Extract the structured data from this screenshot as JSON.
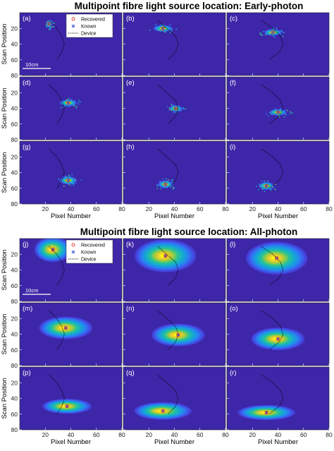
{
  "chart_data": {
    "type": "heatmap",
    "titles": {
      "early": "Multipoint fibre light source location: Early-photon",
      "all": "Multipoint fibre light source location: All-photon"
    },
    "xlabel": "Pixel Number",
    "ylabel": "Scan Position",
    "xlim": [
      0,
      80
    ],
    "ylim": [
      80,
      0
    ],
    "xticks": [
      20,
      40,
      60,
      80
    ],
    "yticks": [
      20,
      40,
      60,
      80
    ],
    "legend": {
      "position": "top-right of panels (a) and (j)",
      "entries": [
        {
          "label": "Recovered",
          "marker": "circle",
          "color": "#e03030"
        },
        {
          "label": "Known",
          "marker": "x",
          "color": "#2040d0"
        },
        {
          "label": "Device",
          "marker": "dotted-line",
          "color": "#000000"
        }
      ]
    },
    "scale_bar": "10cm",
    "colormap": "parula",
    "background_color": "#3d26a8",
    "device_curves": [
      [
        [
          23,
          10
        ],
        [
          29,
          20
        ],
        [
          33,
          30
        ],
        [
          35,
          40
        ],
        [
          33,
          50
        ],
        [
          29,
          60
        ]
      ],
      [
        [
          27,
          10
        ],
        [
          34,
          20
        ],
        [
          41,
          30
        ],
        [
          43,
          40
        ],
        [
          41,
          50
        ],
        [
          35,
          60
        ]
      ],
      [
        [
          27,
          10
        ],
        [
          36,
          20
        ],
        [
          42,
          30
        ],
        [
          44,
          40
        ],
        [
          41,
          50
        ],
        [
          33,
          60
        ]
      ]
    ],
    "panels": [
      {
        "label": "(a)",
        "row": 0,
        "col": 0,
        "mode": "early",
        "source": [
          23,
          14
        ],
        "spread": [
          1.4,
          3.0
        ],
        "curve": 0
      },
      {
        "label": "(b)",
        "row": 0,
        "col": 1,
        "mode": "early",
        "source": [
          31,
          20
        ],
        "spread": [
          4.5,
          2.5
        ],
        "curve": 1
      },
      {
        "label": "(c)",
        "row": 0,
        "col": 2,
        "mode": "early",
        "source": [
          36,
          25
        ],
        "spread": [
          4.0,
          2.5
        ],
        "curve": 2
      },
      {
        "label": "(d)",
        "row": 1,
        "col": 0,
        "mode": "early",
        "source": [
          38,
          33
        ],
        "spread": [
          4.0,
          2.5
        ],
        "curve": 0
      },
      {
        "label": "(e)",
        "row": 1,
        "col": 1,
        "mode": "early",
        "source": [
          41,
          40
        ],
        "spread": [
          3.0,
          2.5
        ],
        "curve": 1
      },
      {
        "label": "(f)",
        "row": 1,
        "col": 2,
        "mode": "early",
        "source": [
          40,
          45
        ],
        "spread": [
          4.0,
          2.5
        ],
        "curve": 2
      },
      {
        "label": "(g)",
        "row": 2,
        "col": 0,
        "mode": "early",
        "source": [
          38,
          50
        ],
        "spread": [
          4.0,
          3.0
        ],
        "curve": 0
      },
      {
        "label": "(h)",
        "row": 2,
        "col": 1,
        "mode": "early",
        "source": [
          33,
          55
        ],
        "spread": [
          3.5,
          3.0
        ],
        "curve": 1
      },
      {
        "label": "(i)",
        "row": 2,
        "col": 2,
        "mode": "early",
        "source": [
          31,
          57
        ],
        "spread": [
          3.5,
          3.0
        ],
        "curve": 2
      },
      {
        "label": "(j)",
        "row": 0,
        "col": 0,
        "mode": "all",
        "source": [
          26,
          14
        ],
        "spread": [
          9.0,
          10.0
        ],
        "curve": 0
      },
      {
        "label": "(k)",
        "row": 0,
        "col": 1,
        "mode": "all",
        "source": [
          33,
          22
        ],
        "spread": [
          15.0,
          13.0
        ],
        "curve": 1
      },
      {
        "label": "(l)",
        "row": 0,
        "col": 2,
        "mode": "all",
        "source": [
          39,
          25
        ],
        "spread": [
          15.0,
          13.0
        ],
        "curve": 2
      },
      {
        "label": "(m)",
        "row": 1,
        "col": 0,
        "mode": "all",
        "source": [
          36,
          32
        ],
        "spread": [
          13.0,
          9.0
        ],
        "curve": 0
      },
      {
        "label": "(n)",
        "row": 1,
        "col": 1,
        "mode": "all",
        "source": [
          43,
          41
        ],
        "spread": [
          13.0,
          9.0
        ],
        "curve": 1
      },
      {
        "label": "(o)",
        "row": 1,
        "col": 2,
        "mode": "all",
        "source": [
          40,
          46
        ],
        "spread": [
          13.0,
          9.0
        ],
        "curve": 2
      },
      {
        "label": "(p)",
        "row": 2,
        "col": 0,
        "mode": "all",
        "source": [
          37,
          50
        ],
        "spread": [
          12.0,
          6.0
        ],
        "curve": 0
      },
      {
        "label": "(q)",
        "row": 2,
        "col": 1,
        "mode": "all",
        "source": [
          31,
          56
        ],
        "spread": [
          14.0,
          7.0
        ],
        "curve": 1
      },
      {
        "label": "(r)",
        "row": 2,
        "col": 2,
        "mode": "all",
        "source": [
          31,
          58
        ],
        "spread": [
          14.0,
          6.0
        ],
        "curve": 2
      }
    ]
  }
}
